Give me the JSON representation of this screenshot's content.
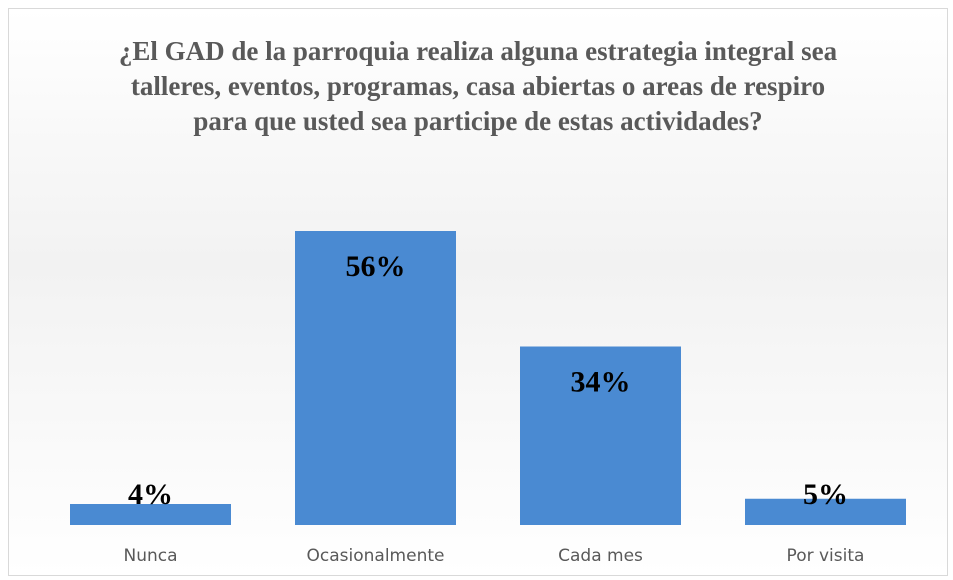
{
  "chart_data": {
    "type": "bar",
    "title": "¿El GAD de la parroquia realiza alguna estrategia integral sea talleres, eventos, programas, casa abiertas o areas de respiro para que usted sea participe de estas actividades?",
    "categories": [
      "Nunca",
      "Ocasionalmente",
      "Cada mes",
      "Por visita"
    ],
    "values": [
      4,
      56,
      34,
      5
    ],
    "value_labels": [
      "4%",
      "56%",
      "34%",
      "5%"
    ],
    "color": "#4a8ad2"
  }
}
